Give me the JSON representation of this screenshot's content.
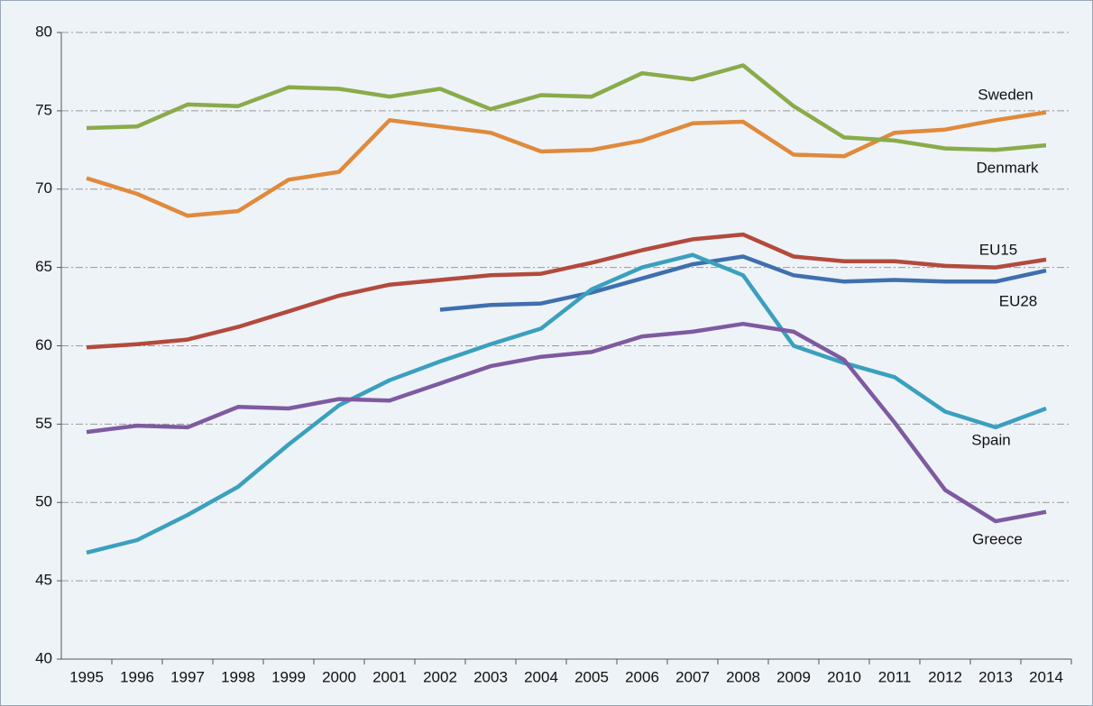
{
  "chart_data": {
    "type": "line",
    "categories": [
      "1995",
      "1996",
      "1997",
      "1998",
      "1999",
      "2000",
      "2001",
      "2002",
      "2003",
      "2004",
      "2005",
      "2006",
      "2007",
      "2008",
      "2009",
      "2010",
      "2011",
      "2012",
      "2013",
      "2014"
    ],
    "series": [
      {
        "name": "Sweden",
        "color": "#e08a3c",
        "values": [
          70.7,
          69.7,
          68.3,
          68.6,
          70.6,
          71.1,
          74.4,
          74.0,
          73.6,
          72.4,
          72.5,
          73.1,
          74.2,
          74.3,
          72.2,
          72.1,
          73.6,
          73.8,
          74.4,
          74.9
        ]
      },
      {
        "name": "Denmark",
        "color": "#8aab4a",
        "values": [
          73.9,
          74.0,
          75.4,
          75.3,
          76.5,
          76.4,
          75.9,
          76.4,
          75.1,
          76.0,
          75.9,
          77.4,
          77.0,
          77.9,
          75.3,
          73.3,
          73.1,
          72.6,
          72.5,
          72.8
        ]
      },
      {
        "name": "EU15",
        "color": "#b34a3c",
        "values": [
          59.9,
          60.1,
          60.4,
          61.2,
          62.2,
          63.2,
          63.9,
          64.2,
          64.5,
          64.6,
          65.3,
          66.1,
          66.8,
          67.1,
          65.7,
          65.4,
          65.4,
          65.1,
          65.0,
          65.5
        ]
      },
      {
        "name": "EU28",
        "color": "#3f6fae",
        "values": [
          null,
          null,
          null,
          null,
          null,
          null,
          null,
          62.3,
          62.6,
          62.7,
          63.4,
          64.3,
          65.2,
          65.7,
          64.5,
          64.1,
          64.2,
          64.1,
          64.1,
          64.8
        ]
      },
      {
        "name": "Spain",
        "color": "#3aa0bd",
        "values": [
          46.8,
          47.6,
          49.2,
          51.0,
          53.7,
          56.2,
          57.8,
          59.0,
          60.1,
          61.1,
          63.6,
          65.0,
          65.8,
          64.5,
          60.0,
          58.9,
          58.0,
          55.8,
          54.8,
          56.0
        ]
      },
      {
        "name": "Greece",
        "color": "#7e5aa0",
        "values": [
          54.5,
          54.9,
          54.8,
          56.1,
          56.0,
          56.6,
          56.5,
          57.6,
          58.7,
          59.3,
          59.6,
          60.6,
          60.9,
          61.4,
          60.9,
          59.1,
          55.1,
          50.8,
          48.8,
          49.4
        ]
      }
    ],
    "ylim": [
      40,
      80
    ],
    "yticks": [
      40,
      45,
      50,
      55,
      60,
      65,
      70,
      75,
      80
    ],
    "grid": true
  }
}
